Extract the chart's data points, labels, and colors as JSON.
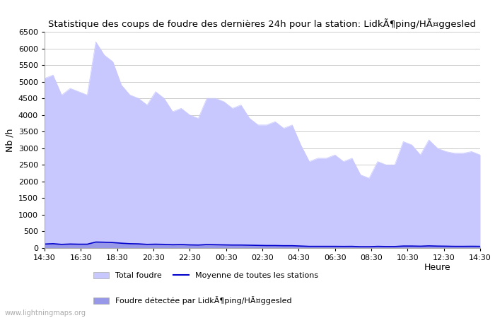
{
  "title": "Statistique des coups de foudre des dernières 24h pour la station: LidkÃ¶ping/HÃ¤ggesled",
  "xlabel": "Heure",
  "ylabel": "Nb /h",
  "bg_color": "#ffffff",
  "plot_bg_color": "#ffffff",
  "grid_color": "#cccccc",
  "fill_color_total": "#c8c8ff",
  "fill_color_station": "#9898e8",
  "line_color_mean": "#0000cc",
  "ylim": [
    0,
    6500
  ],
  "yticks": [
    0,
    500,
    1000,
    1500,
    2000,
    2500,
    3000,
    3500,
    4000,
    4500,
    5000,
    5500,
    6000,
    6500
  ],
  "x_labels": [
    "14:30",
    "16:30",
    "18:30",
    "20:30",
    "22:30",
    "00:30",
    "02:30",
    "04:30",
    "06:30",
    "08:30",
    "10:30",
    "12:30",
    "14:30"
  ],
  "legend_total": "Total foudre",
  "legend_mean": "Moyenne de toutes les stations",
  "legend_station": "Foudre détectée par LidkÃ¶ping/HÃ¤ggesled",
  "watermark": "www.lightningmaps.org",
  "total_foudre": [
    5100,
    5200,
    4600,
    4800,
    4700,
    4600,
    6200,
    5800,
    5600,
    4900,
    4600,
    4500,
    4300,
    4700,
    4500,
    4100,
    4200,
    4000,
    3900,
    4500,
    4500,
    4400,
    4200,
    4300,
    3900,
    3700,
    3700,
    3800,
    3600,
    3700,
    3100,
    2600,
    2700,
    2700,
    2800,
    2600,
    2700,
    2200,
    2100,
    2600,
    2500,
    2500,
    3200,
    3100,
    2800,
    3250,
    3000,
    2900,
    2850,
    2850,
    2900,
    2800
  ],
  "station_foudre": [
    120,
    130,
    110,
    120,
    115,
    115,
    180,
    175,
    165,
    145,
    130,
    125,
    110,
    115,
    110,
    100,
    105,
    95,
    90,
    105,
    100,
    95,
    90,
    90,
    85,
    80,
    75,
    75,
    70,
    70,
    60,
    50,
    50,
    50,
    50,
    48,
    50,
    40,
    40,
    50,
    45,
    45,
    60,
    60,
    55,
    65,
    58,
    55,
    50,
    50,
    52,
    50
  ],
  "mean_all": [
    120,
    130,
    110,
    120,
    115,
    115,
    180,
    175,
    165,
    145,
    130,
    125,
    110,
    115,
    110,
    100,
    105,
    95,
    90,
    105,
    100,
    95,
    90,
    90,
    85,
    80,
    75,
    75,
    70,
    70,
    60,
    50,
    50,
    50,
    50,
    48,
    50,
    40,
    40,
    50,
    45,
    45,
    60,
    60,
    55,
    65,
    58,
    55,
    50,
    50,
    52,
    50
  ]
}
